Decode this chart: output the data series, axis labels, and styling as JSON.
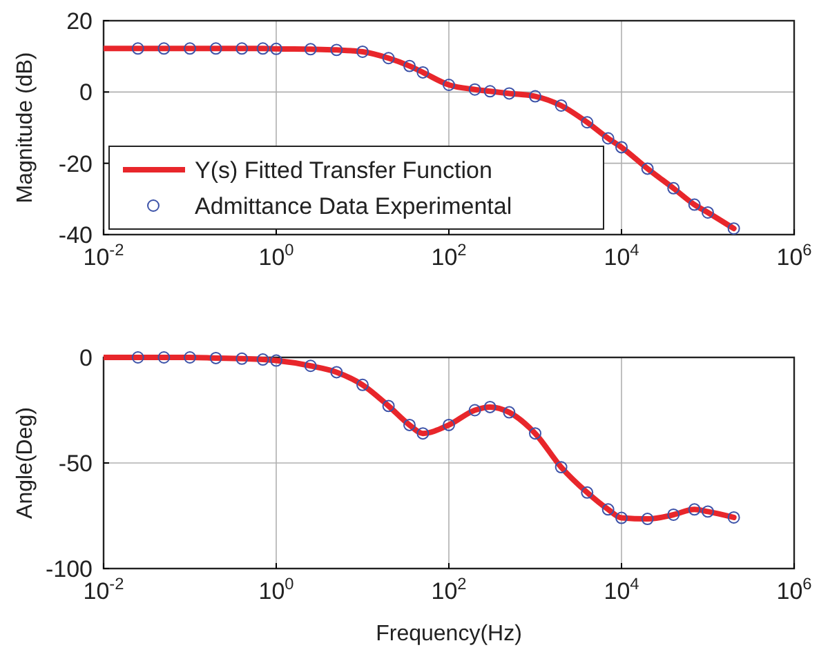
{
  "chart_data": [
    {
      "type": "line",
      "ylabel": "Magnitude (dB)",
      "log": "x",
      "grid": true,
      "legend": "bottom left",
      "xlim": [
        0.01,
        1000000
      ],
      "ylim": [
        -40,
        20
      ],
      "xticks": [
        {
          "value": 0.01,
          "label": "10$^{-2}$"
        },
        {
          "value": 1,
          "label": "10$^{0}$"
        },
        {
          "value": 100,
          "label": "10$^{2}$"
        },
        {
          "value": 10000,
          "label": "10$^{4}$"
        },
        {
          "value": 1000000,
          "label": "10$^{6}$"
        }
      ],
      "yticks": [
        -40,
        -20,
        0,
        20
      ],
      "series": [
        {
          "name": "Y(s) Fitted Transfer Function",
          "color": "#e8262b",
          "marker": "none",
          "x": [
            0.01,
            0.025,
            0.05,
            0.1,
            0.2,
            0.4,
            0.7,
            1,
            2.5,
            5,
            10,
            20,
            35,
            50,
            100,
            200,
            300,
            500,
            1000,
            2000,
            4000,
            7000,
            10000,
            20000,
            40000,
            70000,
            100000,
            200000
          ],
          "values": [
            12.2,
            12.2,
            12.2,
            12.2,
            12.2,
            12.2,
            12.2,
            12.1,
            12,
            11.8,
            11.3,
            9.5,
            7.3,
            5.5,
            2,
            0.7,
            0.2,
            -0.4,
            -1.2,
            -3.8,
            -8.5,
            -13,
            -15.5,
            -21.5,
            -27,
            -31.6,
            -33.8,
            -38.3
          ]
        },
        {
          "name": "Admittance Data Experimental",
          "type": "scatter",
          "color": "#3c52a8",
          "marker": "circle",
          "x": [
            0.025,
            0.05,
            0.1,
            0.2,
            0.4,
            0.7,
            1,
            2.5,
            5,
            10,
            20,
            35,
            50,
            100,
            200,
            300,
            500,
            1000,
            2000,
            4000,
            7000,
            10000,
            20000,
            40000,
            70000,
            100000,
            200000
          ],
          "values": [
            12.2,
            12.2,
            12.2,
            12.2,
            12.2,
            12.2,
            12.1,
            12,
            11.8,
            11.3,
            9.5,
            7.3,
            5.5,
            2,
            0.7,
            0.2,
            -0.4,
            -1.2,
            -3.8,
            -8.5,
            -13,
            -15.5,
            -21.5,
            -27,
            -31.6,
            -33.8,
            -38.3
          ]
        }
      ]
    },
    {
      "type": "line",
      "ylabel": "Angle(Deg)",
      "xlabel": "Frequency(Hz)",
      "log": "x",
      "grid": true,
      "xlim": [
        0.01,
        1000000
      ],
      "ylim": [
        -100,
        0
      ],
      "xticks": [
        {
          "value": 0.01,
          "label": "10$^{-2}$"
        },
        {
          "value": 1,
          "label": "10$^{0}$"
        },
        {
          "value": 100,
          "label": "10$^{2}$"
        },
        {
          "value": 10000,
          "label": "10$^{4}$"
        },
        {
          "value": 1000000,
          "label": "10$^{6}$"
        }
      ],
      "yticks": [
        -100,
        -50,
        0
      ],
      "series": [
        {
          "color": "#e8262b",
          "marker": "none",
          "x": [
            0.01,
            0.025,
            0.05,
            0.1,
            0.2,
            0.4,
            0.7,
            1,
            2.5,
            5,
            10,
            20,
            35,
            50,
            100,
            200,
            300,
            500,
            1000,
            2000,
            4000,
            7000,
            10000,
            20000,
            40000,
            70000,
            100000,
            200000
          ],
          "values": [
            0,
            0,
            0,
            0,
            -0.3,
            -0.6,
            -1,
            -1.5,
            -4,
            -7,
            -13,
            -23,
            -32,
            -36,
            -32,
            -25,
            -23.5,
            -26,
            -36,
            -52,
            -64,
            -72,
            -76,
            -76.5,
            -74.5,
            -72,
            -73,
            -75.8
          ]
        },
        {
          "type": "scatter",
          "color": "#3c52a8",
          "marker": "circle",
          "x": [
            0.025,
            0.05,
            0.1,
            0.2,
            0.4,
            0.7,
            1,
            2.5,
            5,
            10,
            20,
            35,
            50,
            100,
            200,
            300,
            500,
            1000,
            2000,
            4000,
            7000,
            10000,
            20000,
            40000,
            70000,
            100000,
            200000
          ],
          "values": [
            0,
            0,
            0,
            -0.3,
            -0.6,
            -1,
            -1.5,
            -4,
            -7,
            -13,
            -23,
            -32,
            -36,
            -32,
            -25,
            -23.5,
            -26,
            -36,
            -52,
            -64,
            -72,
            -76,
            -76.5,
            -74.5,
            -72,
            -73,
            -75.8
          ]
        }
      ]
    }
  ]
}
